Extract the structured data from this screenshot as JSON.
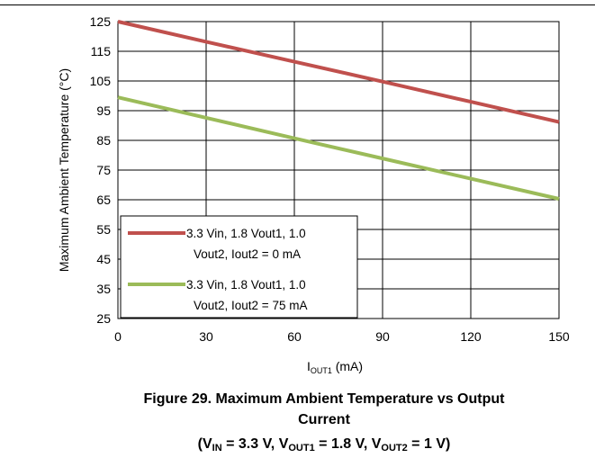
{
  "chart_data": {
    "type": "line",
    "x": [
      0,
      30,
      60,
      90,
      120,
      150
    ],
    "xlim": [
      0,
      150
    ],
    "ylim": [
      25,
      125
    ],
    "xticks": [
      "0",
      "30",
      "60",
      "90",
      "120",
      "150"
    ],
    "yticks": [
      "25",
      "35",
      "45",
      "55",
      "65",
      "75",
      "85",
      "95",
      "105",
      "115",
      "125"
    ],
    "xlabel_main": "I",
    "xlabel_sub": "OUT1",
    "xlabel_unit": " (mA)",
    "ylabel": "Maximum Ambient Temperature (°C)",
    "grid": true,
    "legend_position": "bottom-left",
    "series": [
      {
        "name_line1": "3.3 Vin, 1.8 Vout1,  1.0",
        "name_line2": "Vout2, Iout2 = 0 mA",
        "color": "#c0504d",
        "values": [
          125,
          118.2,
          111.5,
          104.8,
          98,
          91.2
        ]
      },
      {
        "name_line1": "3.3 Vin, 1.8 Vout1,  1.0",
        "name_line2": "Vout2, Iout2 = 75 mA",
        "color": "#9bbb59",
        "values": [
          99.5,
          92.6,
          85.7,
          78.9,
          72.1,
          65.3
        ]
      }
    ]
  },
  "caption": {
    "line1": "Figure 29. Maximum Ambient Temperature vs Output",
    "line2": "Current",
    "l3_open": "(V",
    "l3_in_sub": "IN",
    "l3_mid1": " = 3.3 V, V",
    "l3_out1_sub": "OUT1",
    "l3_mid2": " = 1.8 V, V",
    "l3_out2_sub": "OUT2",
    "l3_close": " = 1 V)"
  }
}
